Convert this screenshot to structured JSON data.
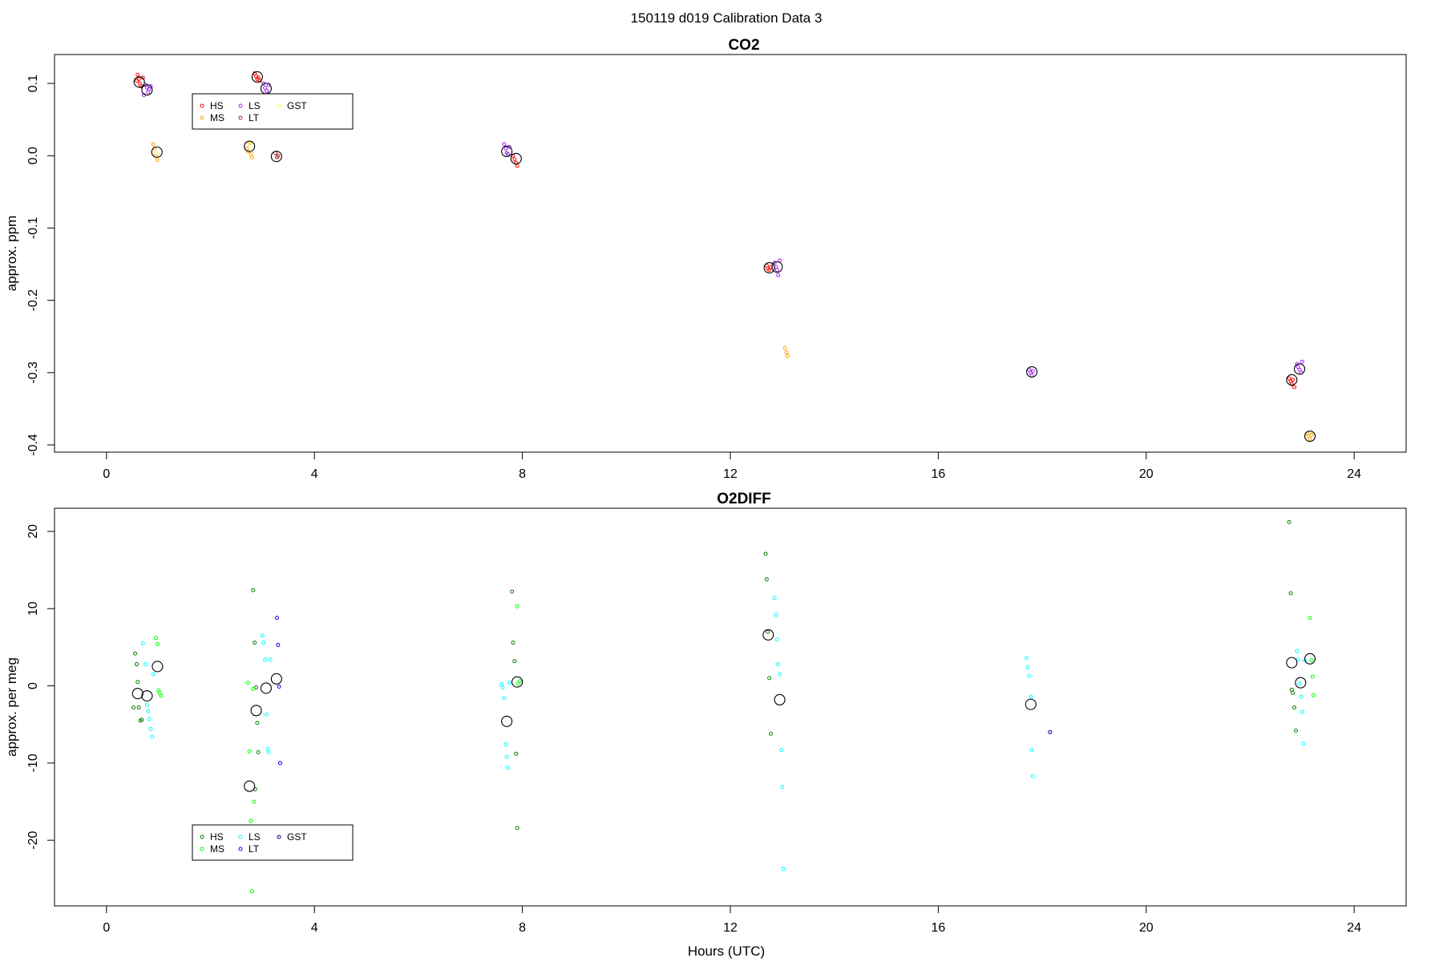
{
  "figure": {
    "suptitle": "150119   d019   Calibration Data 3",
    "xlabel": "Hours (UTC)"
  },
  "chart_data": [
    {
      "type": "scatter",
      "title": "CO2",
      "xlabel": "",
      "ylabel": "approx. ppm",
      "xlim": [
        -1.0,
        25.0
      ],
      "ylim": [
        -0.41,
        0.14
      ],
      "xticks": [
        0,
        4,
        8,
        12,
        16,
        20,
        24
      ],
      "yticks": [
        -0.4,
        -0.3,
        -0.2,
        -0.1,
        0.0,
        0.1
      ],
      "ytick_labels": [
        "-0.4",
        "-0.3",
        "-0.2",
        "-0.1",
        "0.0",
        "0.1"
      ],
      "legend": {
        "position": "top-left",
        "entries": [
          {
            "label": "HS",
            "color": "#ff0000"
          },
          {
            "label": "MS",
            "color": "#ffa500"
          },
          {
            "label": "LS",
            "color": "#a020f0"
          },
          {
            "label": "LT",
            "color": "#b22222"
          },
          {
            "label": "GST",
            "color": "#ffff55"
          }
        ]
      },
      "series": [
        {
          "name": "HS",
          "color": "#ff0000",
          "x": [
            0.6,
            0.62,
            0.64,
            0.66,
            0.58,
            0.7,
            2.85,
            2.88,
            2.9,
            2.92,
            2.95,
            7.82,
            7.85,
            7.88,
            7.9,
            12.7,
            12.72,
            12.75,
            12.78,
            22.75,
            22.78,
            22.8,
            22.82,
            22.85
          ],
          "y": [
            0.112,
            0.106,
            0.1,
            0.096,
            0.104,
            0.108,
            0.114,
            0.11,
            0.106,
            0.108,
            0.104,
            0.0,
            -0.005,
            -0.01,
            -0.014,
            -0.152,
            -0.156,
            -0.158,
            -0.154,
            -0.308,
            -0.312,
            -0.316,
            -0.31,
            -0.32
          ]
        },
        {
          "name": "MS",
          "color": "#ffa500",
          "x": [
            0.9,
            0.92,
            0.95,
            0.98,
            2.7,
            2.72,
            2.75,
            2.78,
            2.8,
            13.05,
            13.08,
            13.1,
            23.1,
            23.12,
            23.15,
            23.18
          ],
          "y": [
            0.016,
            0.01,
            0.0,
            -0.006,
            0.01,
            0.006,
            0.018,
            0.002,
            -0.002,
            -0.266,
            -0.272,
            -0.277,
            -0.384,
            -0.388,
            -0.392,
            -0.386
          ]
        },
        {
          "name": "LS",
          "color": "#a020f0",
          "x": [
            0.75,
            0.78,
            0.8,
            0.82,
            0.85,
            0.72,
            3.02,
            3.05,
            3.08,
            3.1,
            3.12,
            7.65,
            7.68,
            7.7,
            7.72,
            7.75,
            12.85,
            12.88,
            12.9,
            12.92,
            12.95,
            17.75,
            17.78,
            17.8,
            17.82,
            22.9,
            22.92,
            22.95,
            22.98,
            23.0
          ],
          "y": [
            0.098,
            0.094,
            0.088,
            0.092,
            0.096,
            0.084,
            0.1,
            0.094,
            0.09,
            0.086,
            0.098,
            0.016,
            0.01,
            0.004,
            0.002,
            0.012,
            -0.148,
            -0.154,
            -0.158,
            -0.165,
            -0.145,
            -0.296,
            -0.3,
            -0.304,
            -0.298,
            -0.288,
            -0.292,
            -0.296,
            -0.3,
            -0.285
          ]
        },
        {
          "name": "LT",
          "color": "#b22222",
          "x": [
            3.25,
            3.28,
            3.3
          ],
          "y": [
            0.004,
            -0.002,
            0.0
          ]
        },
        {
          "name": "GST",
          "color": "#ffff55",
          "x": [
            0.96,
            2.76
          ],
          "y": [
            0.004,
            0.016
          ]
        },
        {
          "name": "",
          "color": "#000000",
          "kind": "mean",
          "x": [
            0.63,
            0.78,
            0.97,
            2.75,
            2.9,
            3.07,
            3.27,
            7.7,
            7.88,
            12.75,
            12.9,
            17.8,
            22.8,
            22.95,
            23.15
          ],
          "y": [
            0.102,
            0.091,
            0.005,
            0.013,
            0.109,
            0.093,
            -0.001,
            0.006,
            -0.004,
            -0.155,
            -0.154,
            -0.299,
            -0.31,
            -0.295,
            -0.388
          ]
        }
      ]
    },
    {
      "type": "scatter",
      "title": "O2DIFF",
      "xlabel": "Hours (UTC)",
      "ylabel": "approx. per meg",
      "xlim": [
        -1.0,
        25.0
      ],
      "ylim": [
        -28.5,
        23.0
      ],
      "xticks": [
        0,
        4,
        8,
        12,
        16,
        20,
        24
      ],
      "yticks": [
        -20,
        -10,
        0,
        10,
        20
      ],
      "ytick_labels": [
        "-20",
        "-10",
        "0",
        "10",
        "20"
      ],
      "legend": {
        "position": "bottom-left",
        "entries": [
          {
            "label": "HS",
            "color": "#008000"
          },
          {
            "label": "MS",
            "color": "#00ff00"
          },
          {
            "label": "LS",
            "color": "#00ffff"
          },
          {
            "label": "LT",
            "color": "#0000ff"
          },
          {
            "label": "GST",
            "color": "#00008b"
          }
        ]
      },
      "series": [
        {
          "name": "HS",
          "color": "#008000",
          "x": [
            0.55,
            0.58,
            0.6,
            0.62,
            0.65,
            0.68,
            0.52,
            2.82,
            2.85,
            2.88,
            2.9,
            2.92,
            2.86,
            7.8,
            7.82,
            7.85,
            7.88,
            7.9,
            12.68,
            12.7,
            12.72,
            12.75,
            12.78,
            22.75,
            22.78,
            22.8,
            22.82,
            22.85,
            22.88
          ],
          "y": [
            4.2,
            2.8,
            0.5,
            -2.8,
            -4.5,
            -4.4,
            -2.8,
            12.4,
            5.6,
            -0.2,
            -4.8,
            -8.6,
            -13.4,
            12.2,
            5.6,
            3.2,
            -8.8,
            -18.4,
            17.1,
            13.8,
            7.0,
            1.0,
            -6.2,
            21.2,
            12.0,
            -0.5,
            -0.9,
            -2.8,
            -5.8
          ]
        },
        {
          "name": "MS",
          "color": "#00ff00",
          "x": [
            0.95,
            0.98,
            1.0,
            1.02,
            1.05,
            2.72,
            2.75,
            2.78,
            2.8,
            2.82,
            2.84,
            7.9,
            7.92,
            7.95,
            23.15,
            23.18,
            23.2,
            23.22
          ],
          "y": [
            6.2,
            5.4,
            -0.6,
            -0.9,
            -1.3,
            0.4,
            -8.5,
            -17.5,
            -26.6,
            -0.4,
            -15.0,
            10.3,
            0.3,
            0.6,
            8.8,
            3.3,
            1.2,
            -1.2
          ]
        },
        {
          "name": "LS",
          "color": "#00ffff",
          "x": [
            0.7,
            0.75,
            0.78,
            0.8,
            0.82,
            0.85,
            0.88,
            0.9,
            3.0,
            3.02,
            3.05,
            3.08,
            3.1,
            3.12,
            3.15,
            7.6,
            7.62,
            7.65,
            7.68,
            7.7,
            7.72,
            7.75,
            12.85,
            12.88,
            12.9,
            12.92,
            12.95,
            12.98,
            13.0,
            13.02,
            17.7,
            17.72,
            17.75,
            17.78,
            17.8,
            17.82,
            22.9,
            22.92,
            22.95,
            22.98,
            23.0,
            23.02,
            23.05
          ],
          "y": [
            5.5,
            2.8,
            -2.5,
            -3.3,
            -4.3,
            -5.6,
            -6.6,
            1.5,
            6.5,
            5.6,
            3.4,
            -3.7,
            -8.2,
            -8.6,
            3.4,
            0.2,
            -0.2,
            -1.6,
            -7.6,
            -9.2,
            -10.6,
            0.4,
            11.4,
            9.2,
            6.0,
            2.8,
            1.5,
            -8.3,
            -13.1,
            -23.7,
            3.6,
            2.4,
            1.3,
            -1.4,
            -8.3,
            -11.7,
            4.5,
            3.4,
            0.3,
            -1.4,
            -3.4,
            -7.5,
            3.3
          ]
        },
        {
          "name": "LT",
          "color": "#0000ff",
          "x": [
            3.28,
            3.3,
            3.32,
            3.34
          ],
          "y": [
            8.8,
            5.3,
            -0.1,
            -10.0
          ]
        },
        {
          "name": "GST",
          "color": "#00008b",
          "x": [
            18.15
          ],
          "y": [
            -6.0
          ]
        },
        {
          "name": "",
          "color": "#000000",
          "kind": "mean",
          "x": [
            0.6,
            0.78,
            0.98,
            2.75,
            2.88,
            3.07,
            3.27,
            7.7,
            7.9,
            12.73,
            12.95,
            17.78,
            22.8,
            22.97,
            23.15
          ],
          "y": [
            -1.0,
            -1.3,
            2.5,
            -13.0,
            -3.2,
            -0.3,
            0.9,
            -4.6,
            0.5,
            6.6,
            -1.8,
            -2.4,
            3.0,
            0.4,
            3.5
          ]
        }
      ]
    }
  ]
}
